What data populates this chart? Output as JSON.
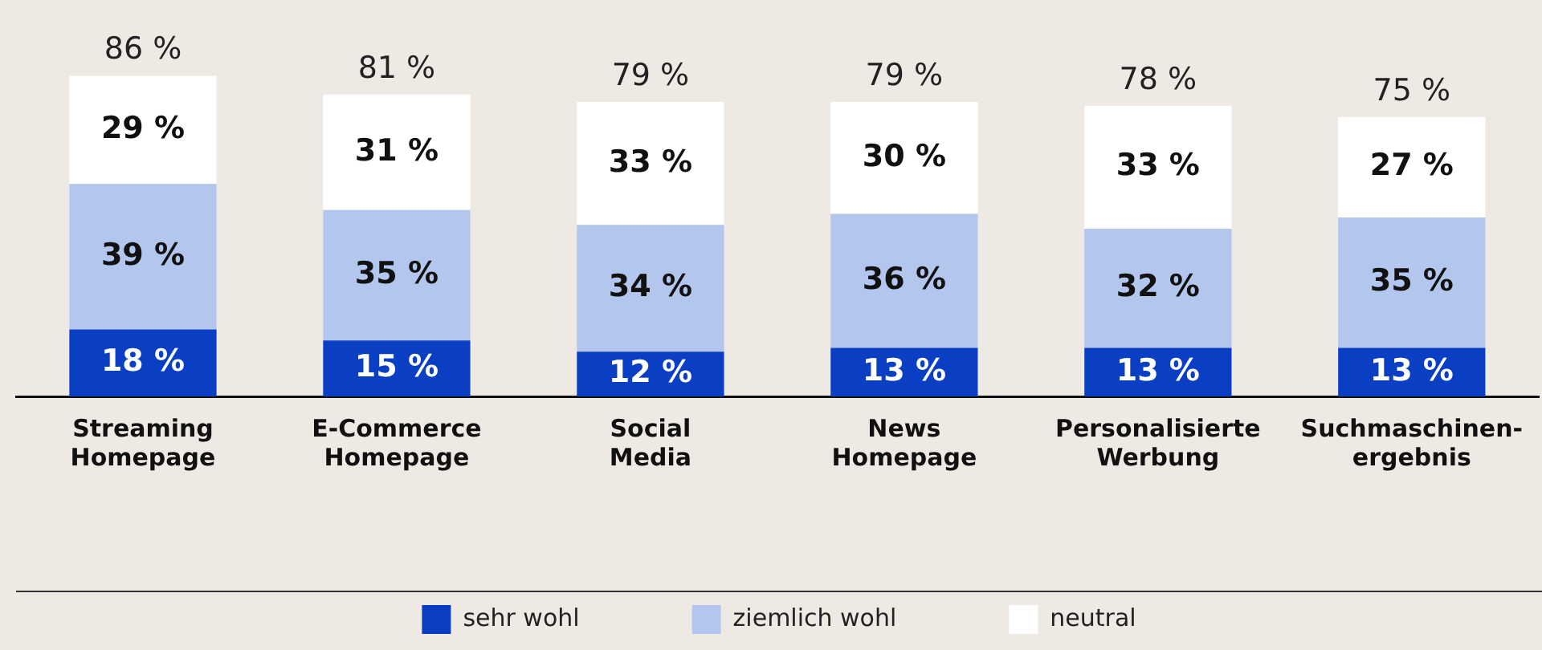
{
  "chart_data": {
    "type": "bar",
    "stacked": true,
    "categories": [
      "Streaming Homepage",
      "E-Commerce Homepage",
      "Social Media",
      "News Homepage",
      "Personalisierte Werbung",
      "Suchmaschinen-ergebnis"
    ],
    "series": [
      {
        "name": "sehr wohl",
        "color": "#0a3fc4",
        "values": [
          18,
          15,
          12,
          13,
          13,
          13
        ],
        "value_labels": [
          "18 %",
          "15 %",
          "12 %",
          "13 %",
          "13 %",
          "13 %"
        ]
      },
      {
        "name": "ziemlich wohl",
        "color": "#b3c6ee",
        "values": [
          39,
          35,
          34,
          36,
          32,
          35
        ],
        "value_labels": [
          "39 %",
          "35 %",
          "34 %",
          "36 %",
          "32 %",
          "35 %"
        ]
      },
      {
        "name": "neutral",
        "color": "#ffffff",
        "values": [
          29,
          31,
          33,
          30,
          33,
          27
        ],
        "value_labels": [
          "29 %",
          "31 %",
          "33 %",
          "30 %",
          "33 %",
          "27 %"
        ]
      }
    ],
    "totals": [
      "86 %",
      "81 %",
      "79 %",
      "79 %",
      "78 %",
      "75 %"
    ],
    "legend": "bottom"
  }
}
